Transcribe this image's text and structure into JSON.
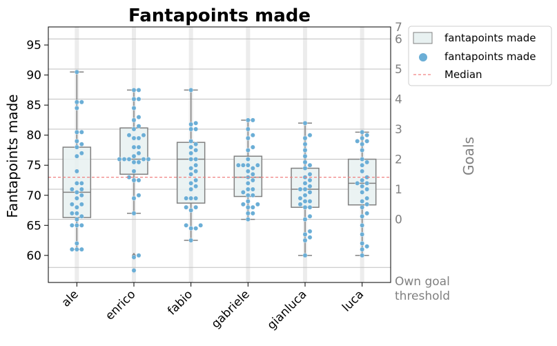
{
  "chart_data": {
    "type": "box",
    "title": "Fantapoints made",
    "ylabel": "Fantapoints made",
    "right_ylabel": "Goals",
    "ylim": [
      55.5,
      98
    ],
    "yticks": [
      60,
      65,
      70,
      75,
      80,
      85,
      90,
      95
    ],
    "categories": [
      "ale",
      "enrico",
      "fabio",
      "gabriele",
      "gianluca",
      "luca"
    ],
    "median_line": 73.0,
    "goal_thresholds": [
      {
        "label": "Own goal\nthreshold",
        "value": 58
      },
      {
        "label": "0",
        "value": 66
      },
      {
        "label": "1",
        "value": 71
      },
      {
        "label": "2",
        "value": 76
      },
      {
        "label": "3",
        "value": 81
      },
      {
        "label": "4",
        "value": 86
      },
      {
        "label": "5",
        "value": 91
      },
      {
        "label": "6",
        "value": 96
      },
      {
        "label": "7",
        "value": 101
      }
    ],
    "legend": {
      "placement": "outside-top-right",
      "entries": [
        {
          "kind": "box",
          "label": "fantapoints made"
        },
        {
          "kind": "dot",
          "label": "fantapoints made"
        },
        {
          "kind": "dashed-line",
          "label": "Median"
        }
      ]
    },
    "boxes": [
      {
        "name": "ale",
        "whisker_low": 61,
        "q1": 66.3,
        "median": 70.5,
        "q3": 78,
        "whisker_high": 90.5,
        "outliers": []
      },
      {
        "name": "enrico",
        "whisker_low": 67,
        "q1": 73.5,
        "median": 76,
        "q3": 81.2,
        "whisker_high": 87.5,
        "outliers": [
          60,
          59.7,
          57.5
        ]
      },
      {
        "name": "fabio",
        "whisker_low": 62.5,
        "q1": 68.7,
        "median": 76,
        "q3": 78.8,
        "whisker_high": 87.5,
        "outliers": []
      },
      {
        "name": "gabriele",
        "whisker_low": 66,
        "q1": 69.8,
        "median": 73,
        "q3": 76.5,
        "whisker_high": 82.5,
        "outliers": []
      },
      {
        "name": "gianluca",
        "whisker_low": 60,
        "q1": 68,
        "median": 71,
        "q3": 74.5,
        "whisker_high": 82,
        "outliers": []
      },
      {
        "name": "luca",
        "whisker_low": 60,
        "q1": 68.4,
        "median": 72,
        "q3": 76,
        "whisker_high": 80.5,
        "outliers": []
      }
    ],
    "points": [
      {
        "name": "ale",
        "values": [
          90.5,
          85.5,
          85.5,
          84.5,
          80.5,
          80.5,
          79,
          78.5,
          78,
          77,
          76.5,
          74,
          72,
          72,
          71,
          71,
          70.5,
          70,
          69.5,
          68.5,
          68.5,
          68,
          67,
          67,
          66.5,
          66,
          65,
          65,
          65,
          62,
          61,
          61,
          61
        ]
      },
      {
        "name": "enrico",
        "values": [
          87.5,
          87.5,
          86,
          86,
          84.5,
          83,
          82.5,
          81.5,
          81,
          80,
          80,
          79.5,
          79.5,
          78,
          78,
          77,
          76.5,
          76,
          76,
          76,
          76,
          76,
          75.5,
          75.5,
          74,
          73,
          72.5,
          72.5,
          70,
          69.5,
          67,
          60,
          59.7,
          57.5
        ]
      },
      {
        "name": "fabio",
        "values": [
          87.5,
          82,
          81.8,
          81,
          81,
          79,
          78.5,
          78,
          77.5,
          77,
          76,
          76,
          75,
          74.5,
          74,
          73.5,
          72.5,
          72,
          71.5,
          71,
          69.5,
          69.5,
          69.5,
          68,
          68,
          67.5,
          65,
          65,
          64.5,
          64.5,
          62.5
        ]
      },
      {
        "name": "gabriele",
        "values": [
          82.5,
          82.5,
          81,
          80,
          79.5,
          78,
          77.5,
          76,
          75,
          75,
          75,
          75,
          74.5,
          74,
          73.5,
          73,
          72.5,
          72,
          71,
          71,
          70.5,
          70,
          70,
          69,
          68.5,
          68.5,
          68,
          68,
          67,
          67,
          66
        ]
      },
      {
        "name": "gianluca",
        "values": [
          82,
          80,
          79.5,
          78.5,
          77.5,
          76.5,
          75.5,
          75,
          74.5,
          73.5,
          73,
          72.5,
          72,
          71.5,
          71,
          71,
          70.5,
          70,
          69.5,
          69,
          69,
          68.5,
          68,
          68,
          66.5,
          66,
          64,
          63.5,
          63,
          62.5,
          60
        ]
      },
      {
        "name": "luca",
        "values": [
          80.5,
          80,
          79.5,
          79,
          79,
          78.5,
          77.5,
          76,
          75.5,
          75,
          74,
          73,
          72.5,
          72,
          72,
          71.5,
          71,
          70.5,
          69.5,
          69,
          68.5,
          68,
          67,
          66.5,
          65,
          63.5,
          62,
          61.5,
          61,
          60
        ]
      }
    ]
  },
  "colors": {
    "point": "#6baed6",
    "box_fill": "#e8f1f1",
    "box_edge": "#808080",
    "grid": "#bfbfbf",
    "stripe": "#ececec",
    "median": "#f08080"
  }
}
